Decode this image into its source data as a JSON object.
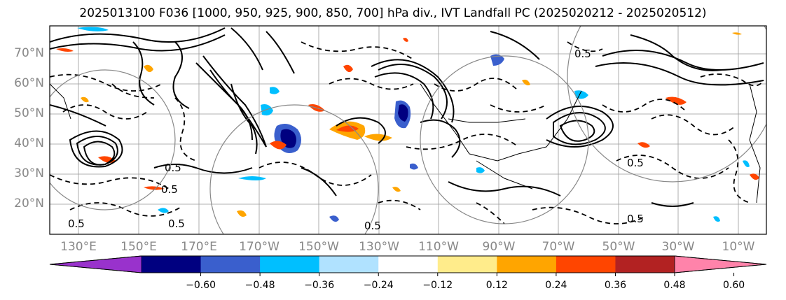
{
  "title": "2025013100 F036 [1000, 950, 925, 900, 850, 700] hPa div., IVT Landfall PC (2025020212 - 2025020512)",
  "map": {
    "lat_labels": [
      "70°N",
      "60°N",
      "50°N",
      "40°N",
      "30°N",
      "20°N"
    ],
    "lon_labels": [
      "130°E",
      "150°E",
      "170°E",
      "170°W",
      "150°W",
      "130°W",
      "110°W",
      "90°W",
      "70°W",
      "50°W",
      "30°W",
      "10°W"
    ],
    "contour_label": "0.5",
    "gridlines": true,
    "coastline_color": "#000000",
    "gridline_color": "#888888"
  },
  "colorbar": {
    "extend": "both",
    "tick_labels": [
      "−0.60",
      "−0.48",
      "−0.36",
      "−0.24",
      "−0.12",
      "0.12",
      "0.24",
      "0.36",
      "0.48",
      "0.60"
    ],
    "colors": [
      "#9932cc",
      "#000080",
      "#3a5fcd",
      "#00bfff",
      "#b0e2ff",
      "#ffffff",
      "#ffec8b",
      "#ffa500",
      "#ff4500",
      "#b22222",
      "#ff83aa"
    ]
  }
}
